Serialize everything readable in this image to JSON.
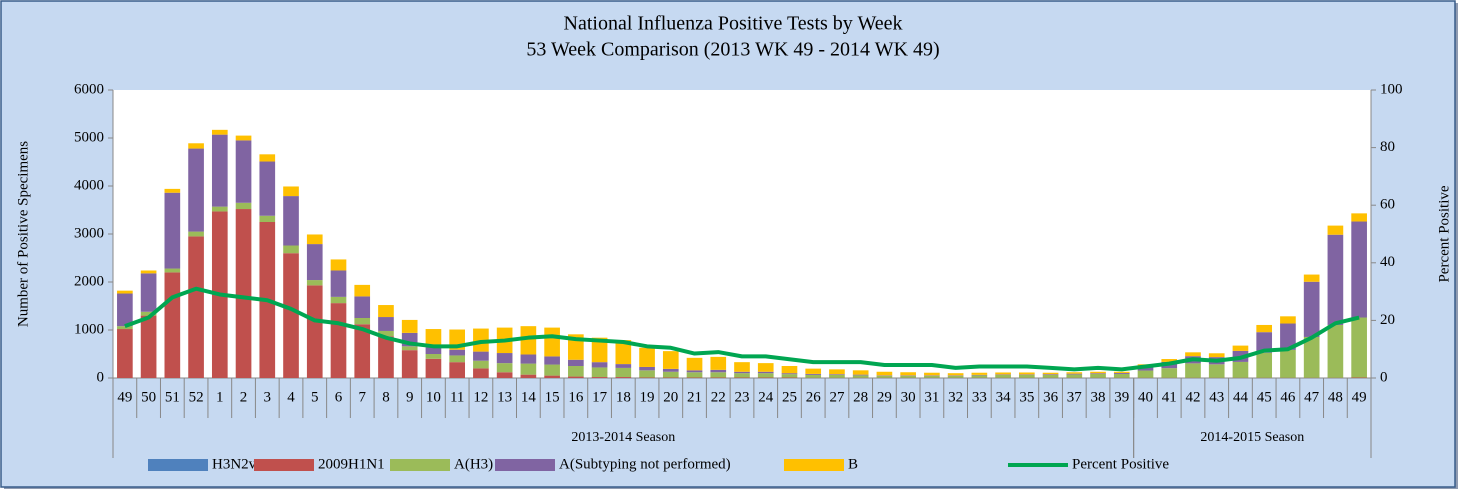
{
  "chart_data": {
    "type": "bar",
    "stacked": true,
    "title": "National Influenza Positive Tests by Week",
    "subtitle": "53 Week Comparison (2013 WK 49 - 2014 WK 49)",
    "y_label": "Number of Positive Specimens",
    "y2_label": "Percent Positive",
    "category_groups": [
      {
        "name": "2013-2014 Season",
        "categories": [
          "49",
          "50",
          "51",
          "52",
          "1",
          "2",
          "3",
          "4",
          "5",
          "6",
          "7",
          "8",
          "9",
          "10",
          "11",
          "12",
          "13",
          "14",
          "15",
          "16",
          "17",
          "18",
          "19",
          "20",
          "21",
          "22",
          "23",
          "24",
          "25",
          "26",
          "27",
          "28",
          "29",
          "30",
          "31",
          "32",
          "33",
          "34",
          "35",
          "36",
          "37",
          "38",
          "39"
        ]
      },
      {
        "name": "2014-2015 Season",
        "categories": [
          "40",
          "41",
          "42",
          "43",
          "44",
          "45",
          "46",
          "47",
          "48",
          "49"
        ]
      }
    ],
    "ylim": [
      0,
      6000
    ],
    "yticks": [
      0,
      1000,
      2000,
      3000,
      4000,
      5000,
      6000
    ],
    "y2lim": [
      0,
      100
    ],
    "y2ticks": [
      0,
      20,
      40,
      60,
      80,
      100
    ],
    "legend": "bottom",
    "series": [
      {
        "name": "H3N2v",
        "color": "#4f81bd",
        "values": [
          0,
          0,
          0,
          0,
          0,
          0,
          0,
          0,
          0,
          0,
          0,
          0,
          0,
          0,
          0,
          0,
          0,
          0,
          0,
          0,
          0,
          0,
          0,
          0,
          0,
          0,
          0,
          0,
          0,
          0,
          0,
          0,
          0,
          0,
          0,
          0,
          0,
          0,
          0,
          0,
          0,
          0,
          0,
          0,
          0,
          0,
          0,
          0,
          0,
          0,
          0,
          0,
          0
        ]
      },
      {
        "name": "2009H1N1",
        "color": "#c0504d",
        "values": [
          1020,
          1300,
          2200,
          2950,
          3470,
          3520,
          3250,
          2600,
          1930,
          1560,
          1120,
          870,
          580,
          400,
          330,
          200,
          120,
          70,
          50,
          30,
          20,
          20,
          10,
          10,
          10,
          10,
          10,
          10,
          10,
          5,
          5,
          5,
          5,
          5,
          5,
          5,
          5,
          5,
          5,
          5,
          5,
          5,
          5,
          5,
          5,
          5,
          5,
          5,
          5,
          5,
          5,
          5,
          10
        ]
      },
      {
        "name": "A(H3)",
        "color": "#9bbb59",
        "values": [
          60,
          80,
          80,
          100,
          100,
          130,
          130,
          160,
          110,
          130,
          130,
          110,
          80,
          100,
          140,
          160,
          190,
          230,
          230,
          220,
          200,
          190,
          150,
          120,
          110,
          110,
          90,
          90,
          70,
          60,
          60,
          50,
          40,
          40,
          40,
          40,
          50,
          60,
          60,
          60,
          70,
          80,
          80,
          150,
          200,
          300,
          280,
          330,
          520,
          580,
          850,
          1100,
          1250
        ]
      },
      {
        "name": "A(Subtyping not performed)",
        "color": "#8064a2",
        "values": [
          680,
          800,
          1580,
          1730,
          1500,
          1300,
          1130,
          1030,
          750,
          550,
          450,
          290,
          280,
          140,
          120,
          190,
          210,
          190,
          170,
          130,
          110,
          80,
          70,
          60,
          40,
          50,
          30,
          30,
          20,
          20,
          15,
          15,
          10,
          10,
          10,
          10,
          10,
          10,
          10,
          15,
          15,
          15,
          20,
          80,
          130,
          150,
          150,
          230,
          430,
          550,
          1150,
          1880,
          2000
        ]
      },
      {
        "name": "B",
        "color": "#ffc000",
        "values": [
          60,
          60,
          80,
          110,
          100,
          100,
          150,
          200,
          200,
          230,
          240,
          250,
          270,
          380,
          420,
          480,
          530,
          590,
          600,
          530,
          510,
          500,
          400,
          370,
          260,
          270,
          200,
          180,
          150,
          110,
          100,
          90,
          75,
          65,
          55,
          45,
          45,
          40,
          40,
          30,
          30,
          30,
          25,
          50,
          60,
          80,
          80,
          110,
          150,
          150,
          150,
          190,
          170
        ]
      },
      {
        "name": "Percent Positive",
        "type": "line",
        "axis": "y2",
        "color": "#00a651",
        "values": [
          18,
          21,
          28,
          31,
          29,
          28,
          27,
          24,
          20,
          19,
          17,
          14,
          12,
          11,
          11,
          12.5,
          13,
          14,
          14.5,
          13.5,
          13,
          12.5,
          11,
          10.5,
          8.5,
          9,
          7.5,
          7.5,
          6.5,
          5.5,
          5.5,
          5.5,
          4.5,
          4.5,
          4.5,
          3.5,
          4,
          4,
          4,
          3.5,
          3,
          3.5,
          3,
          4,
          5,
          6.5,
          6,
          7,
          9.5,
          10,
          14,
          19,
          21
        ]
      }
    ]
  }
}
